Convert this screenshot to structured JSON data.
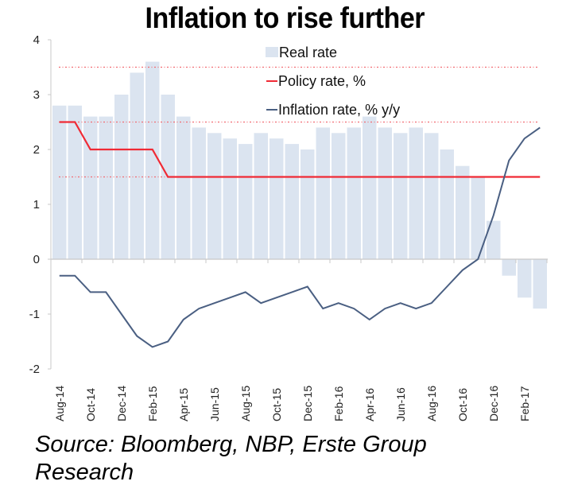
{
  "title": "Inflation to rise further",
  "source": "Source: Bloomberg, NBP, Erste Group Research",
  "colors": {
    "real_rate": "#dbe4f0",
    "policy_rate": "#f02a35",
    "inflation_rate": "#4a5f82",
    "band_lines": "#f26b72",
    "axis": "#c8c8c8"
  },
  "chart_data": {
    "type": "bar",
    "title": "Inflation to rise further",
    "xlabel": "",
    "ylabel": "",
    "ylim": [
      -2,
      4
    ],
    "yticks": [
      "4",
      "3",
      "2",
      "1",
      "0",
      "-1",
      "-2"
    ],
    "ytick_values": [
      4,
      3,
      2,
      1,
      0,
      -1,
      -2
    ],
    "categories": [
      "Aug-14",
      "Sep-14",
      "Oct-14",
      "Nov-14",
      "Dec-14",
      "Jan-15",
      "Feb-15",
      "Mar-15",
      "Apr-15",
      "May-15",
      "Jun-15",
      "Jul-15",
      "Aug-15",
      "Sep-15",
      "Oct-15",
      "Nov-15",
      "Dec-15",
      "Jan-16",
      "Feb-16",
      "Mar-16",
      "Apr-16",
      "May-16",
      "Jun-16",
      "Jul-16",
      "Aug-16",
      "Sep-16",
      "Oct-16",
      "Nov-16",
      "Dec-16",
      "Jan-17",
      "Feb-17",
      "Mar-17"
    ],
    "xtick_labels": [
      "Aug-14",
      "Oct-14",
      "Dec-14",
      "Feb-15",
      "Apr-15",
      "Jun-15",
      "Aug-15",
      "Oct-15",
      "Dec-15",
      "Feb-16",
      "Apr-16",
      "Jun-16",
      "Aug-16",
      "Oct-16",
      "Dec-16",
      "Feb-17"
    ],
    "series": [
      {
        "name": "Real rate",
        "kind": "bar",
        "values": [
          2.8,
          2.8,
          2.6,
          2.6,
          3.0,
          3.4,
          3.6,
          3.0,
          2.6,
          2.4,
          2.3,
          2.2,
          2.1,
          2.3,
          2.2,
          2.1,
          2.0,
          2.4,
          2.3,
          2.4,
          2.6,
          2.4,
          2.3,
          2.4,
          2.3,
          2.0,
          1.7,
          1.5,
          0.7,
          -0.3,
          -0.7,
          -0.9
        ]
      },
      {
        "name": "Policy rate, %",
        "kind": "line",
        "values": [
          2.5,
          2.5,
          2.0,
          2.0,
          2.0,
          2.0,
          2.0,
          1.5,
          1.5,
          1.5,
          1.5,
          1.5,
          1.5,
          1.5,
          1.5,
          1.5,
          1.5,
          1.5,
          1.5,
          1.5,
          1.5,
          1.5,
          1.5,
          1.5,
          1.5,
          1.5,
          1.5,
          1.5,
          1.5,
          1.5,
          1.5,
          1.5
        ]
      },
      {
        "name": "Inflation rate, % y/y",
        "kind": "line",
        "values": [
          -0.3,
          -0.3,
          -0.6,
          -0.6,
          -1.0,
          -1.4,
          -1.6,
          -1.5,
          -1.1,
          -0.9,
          -0.8,
          -0.7,
          -0.6,
          -0.8,
          -0.7,
          -0.6,
          -0.5,
          -0.9,
          -0.8,
          -0.9,
          -1.1,
          -0.9,
          -0.8,
          -0.9,
          -0.8,
          -0.5,
          -0.2,
          0.0,
          0.8,
          1.8,
          2.2,
          2.4
        ]
      }
    ],
    "reference_lines": [
      3.5,
      2.5,
      1.5
    ],
    "reference_line_style": "dotted",
    "legend": [
      "Real rate",
      "Policy rate, %",
      "Inflation rate, % y/y"
    ],
    "legend_position": "top-center",
    "grid": false
  }
}
